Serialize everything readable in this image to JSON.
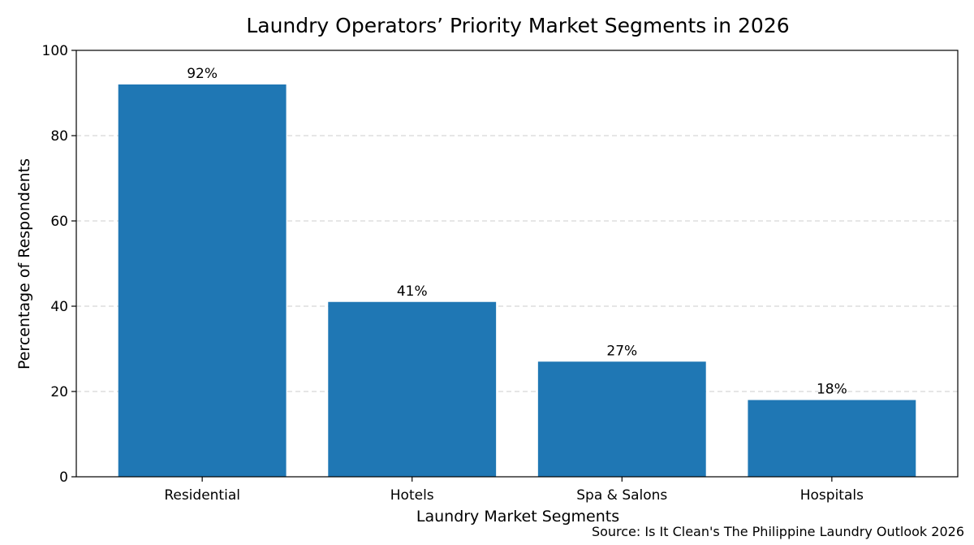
{
  "chart_data": {
    "type": "bar",
    "title": "Laundry Operators’ Priority Market Segments in 2026",
    "xlabel": "Laundry Market Segments",
    "ylabel": "Percentage of Respondents",
    "categories": [
      "Residential",
      "Hotels",
      "Spa & Salons",
      "Hospitals"
    ],
    "values": [
      92,
      41,
      27,
      18
    ],
    "data_labels": [
      "92%",
      "41%",
      "27%",
      "18%"
    ],
    "ylim": [
      0,
      100
    ],
    "yticks": [
      0,
      20,
      40,
      60,
      80,
      100
    ],
    "grid": "horizontal dashed",
    "legend": "none",
    "bar_color": "#1f77b4",
    "grid_color": "#cccccc",
    "source": "Source: Is It Clean's The Philippine Laundry Outlook 2026"
  }
}
